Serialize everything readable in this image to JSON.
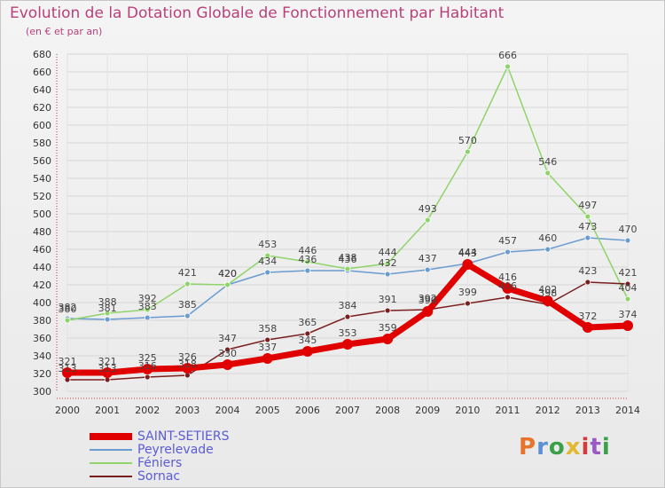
{
  "title": "Evolution de la Dotation Globale de Fonctionnement par Habitant",
  "subtitle": "(en € et par an)",
  "logo": {
    "text": "Proxiti",
    "colors": [
      "#e8742c",
      "#5b8fd6",
      "#3aa14a",
      "#e2b930",
      "#d23c3c",
      "#9b59c6",
      "#3aa14a"
    ]
  },
  "chart_data": {
    "type": "line",
    "x": [
      "2000",
      "2001",
      "2002",
      "2003",
      "2004",
      "2005",
      "2006",
      "2007",
      "2008",
      "2009",
      "2010",
      "2011",
      "2012",
      "2013",
      "2014"
    ],
    "ylim": [
      300,
      680
    ],
    "yticks": [
      300,
      320,
      340,
      360,
      380,
      400,
      420,
      440,
      460,
      480,
      500,
      520,
      540,
      560,
      580,
      600,
      620,
      640,
      660,
      680
    ],
    "grid": true,
    "legend_position": "bottom-left",
    "series": [
      {
        "name": "SAINT-SETIERS",
        "color": "#e00000",
        "width": 7,
        "values": [
          321,
          321,
          325,
          326,
          330,
          337,
          345,
          353,
          359,
          390,
          443,
          416,
          402,
          372,
          374
        ]
      },
      {
        "name": "Peyrelevade",
        "color": "#6a9bd1",
        "width": 1.5,
        "values": [
          382,
          381,
          383,
          385,
          420,
          434,
          436,
          436,
          432,
          437,
          444,
          457,
          460,
          473,
          470
        ]
      },
      {
        "name": "Féniers",
        "color": "#8fd46a",
        "width": 1.5,
        "values": [
          380,
          388,
          392,
          421,
          420,
          453,
          446,
          438,
          444,
          493,
          570,
          666,
          546,
          497,
          404
        ]
      },
      {
        "name": "Sornac",
        "color": "#7a1f1f",
        "width": 1.5,
        "values": [
          313,
          313,
          316,
          318,
          347,
          358,
          365,
          384,
          391,
          392,
          399,
          406,
          398,
          423,
          421
        ]
      }
    ]
  }
}
